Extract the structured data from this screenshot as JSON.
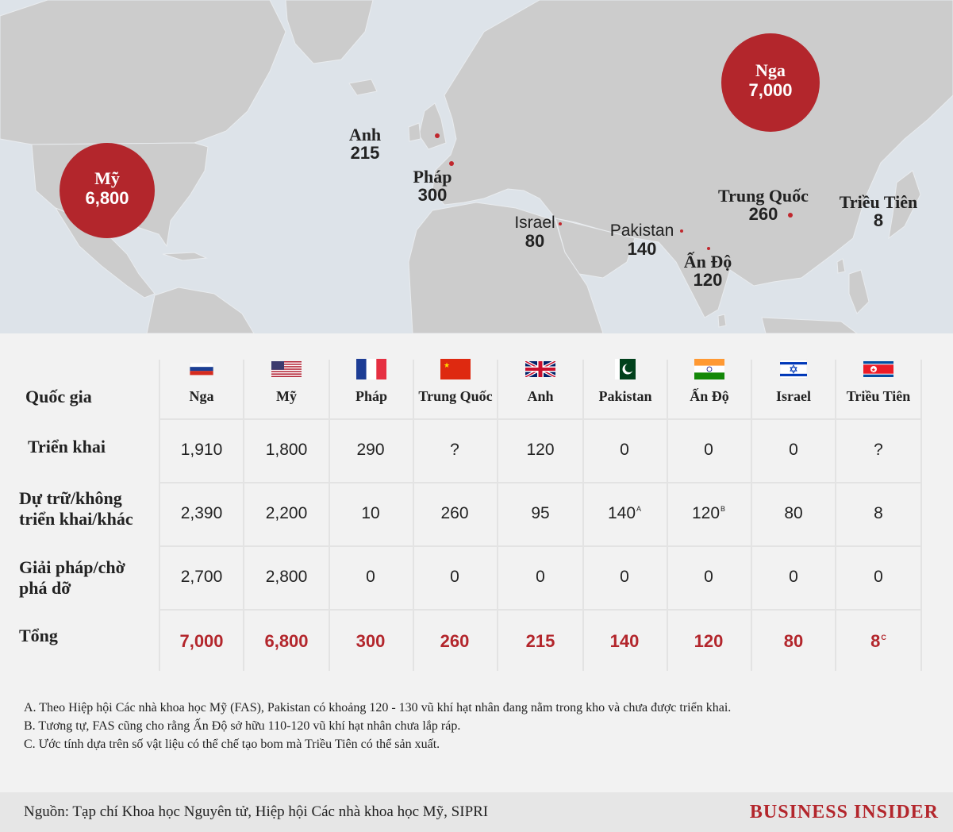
{
  "colors": {
    "accent": "#b3262c",
    "ocean": "#dde3e9",
    "land": "#cccccc",
    "table_bg": "#f2f2f2",
    "footer_bg": "#e6e6e6"
  },
  "map": {
    "labels": {
      "usa": {
        "name": "Mỹ",
        "value": "6,800"
      },
      "russia": {
        "name": "Nga",
        "value": "7,000"
      },
      "uk": {
        "name": "Anh",
        "value": "215"
      },
      "france": {
        "name": "Pháp",
        "value": "300"
      },
      "israel": {
        "name": "Israel",
        "value": "80"
      },
      "pakistan": {
        "name": "Pakistan",
        "value": "140"
      },
      "india": {
        "name": "Ấn Độ",
        "value": "120"
      },
      "china": {
        "name": "Trung Quốc",
        "value": "260"
      },
      "nkorea": {
        "name": "Triều Tiên",
        "value": "8"
      }
    }
  },
  "table": {
    "header_label": "Quốc gia",
    "countries": [
      {
        "name": "Nga",
        "flag": "russia-flag-icon"
      },
      {
        "name": "Mỹ",
        "flag": "usa-flag-icon"
      },
      {
        "name": "Pháp",
        "flag": "france-flag-icon"
      },
      {
        "name": "Trung Quốc",
        "flag": "china-flag-icon"
      },
      {
        "name": "Anh",
        "flag": "uk-flag-icon"
      },
      {
        "name": "Pakistan",
        "flag": "pakistan-flag-icon"
      },
      {
        "name": "Ấn Độ",
        "flag": "india-flag-icon"
      },
      {
        "name": "Israel",
        "flag": "israel-flag-icon"
      },
      {
        "name": "Triều Tiên",
        "flag": "north-korea-flag-icon"
      }
    ],
    "rows": [
      {
        "label": [
          "Triển khai"
        ],
        "values": [
          "1,910",
          "1,800",
          "290",
          "?",
          "120",
          "0",
          "0",
          "0",
          "?"
        ],
        "notes": [
          "",
          "",
          "",
          "",
          "",
          "",
          "",
          "",
          ""
        ]
      },
      {
        "label": [
          "Dự trữ/không",
          "triển khai/khác"
        ],
        "values": [
          "2,390",
          "2,200",
          "10",
          "260",
          "95",
          "140",
          "120",
          "80",
          "8"
        ],
        "notes": [
          "",
          "",
          "",
          "",
          "",
          "A",
          "B",
          "",
          ""
        ]
      },
      {
        "label": [
          "Giải pháp/chờ",
          "phá dỡ"
        ],
        "values": [
          "2,700",
          "2,800",
          "0",
          "0",
          "0",
          "0",
          "0",
          "0",
          "0"
        ],
        "notes": [
          "",
          "",
          "",
          "",
          "",
          "",
          "",
          "",
          ""
        ]
      },
      {
        "label": [
          "Tổng"
        ],
        "values": [
          "7,000",
          "6,800",
          "300",
          "260",
          "215",
          "140",
          "120",
          "80",
          "8"
        ],
        "notes": [
          "",
          "",
          "",
          "",
          "",
          "",
          "",
          "",
          "C"
        ]
      }
    ]
  },
  "notes": [
    "A. Theo Hiệp hội Các nhà khoa học Mỹ (FAS), Pakistan có khoảng 120 - 130 vũ khí hạt nhân đang nằm trong kho và chưa được triển khai.",
    "B. Tương tự, FAS cũng cho rằng Ấn Độ sở hữu 110-120 vũ khí hạt nhân chưa lắp ráp.",
    "C. Ước tính dựa trên số vật liệu có thể chế tạo bom mà Triều Tiên có thể sản xuất."
  ],
  "footer": {
    "source": "Nguồn: Tạp chí Khoa học Nguyên tử, Hiệp hội Các nhà khoa học Mỹ, SIPRI",
    "brand": "BUSINESS INSIDER"
  }
}
